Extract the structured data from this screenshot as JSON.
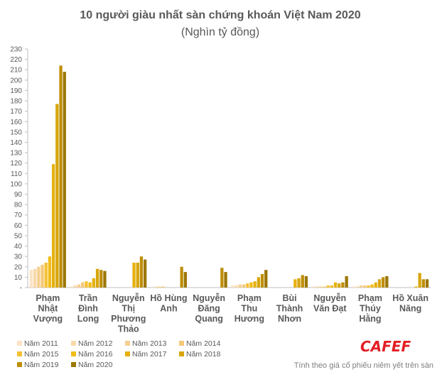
{
  "header": {
    "title": "10 người giàu nhất sàn chứng khoán Việt Nam 2020",
    "subtitle": "(Nghìn tỷ đồng)"
  },
  "brand": {
    "name": "CAFEF",
    "color": "#e31e24"
  },
  "source_note": "Tính theo giá cổ phiếu niêm yết trên sàn",
  "chart_data": {
    "type": "bar",
    "title": "10 người giàu nhất sàn chứng khoán Việt Nam 2020",
    "subtitle": "(Nghìn tỷ đồng)",
    "ylim": [
      0,
      230
    ],
    "yticks": [
      0,
      10,
      20,
      30,
      40,
      50,
      60,
      70,
      80,
      90,
      100,
      110,
      120,
      130,
      140,
      150,
      160,
      170,
      180,
      190,
      200,
      210,
      220,
      230
    ],
    "ytick_labels": [
      "-",
      "10",
      "20",
      "30",
      "40",
      "50",
      "60",
      "70",
      "80",
      "90",
      "100",
      "110",
      "120",
      "130",
      "140",
      "150",
      "160",
      "170",
      "180",
      "190",
      "200",
      "210",
      "220",
      "230"
    ],
    "grid": false,
    "legend_position": "bottom",
    "categories": [
      [
        "Phạm",
        "Nhật",
        "Vượng"
      ],
      [
        "Trần",
        "Đình",
        "Long"
      ],
      [
        "Nguyễn",
        "Thị",
        "Phương",
        "Thảo"
      ],
      [
        "Hồ Hùng",
        "Anh"
      ],
      [
        "Nguyễn",
        "Đăng",
        "Quang"
      ],
      [
        "Phạm",
        "Thu",
        "Hương"
      ],
      [
        "Bùi",
        "Thành",
        "Nhơn"
      ],
      [
        "Nguyễn",
        "Văn Đạt"
      ],
      [
        "Phạm",
        "Thúy",
        "Hằng"
      ],
      [
        "Hồ Xuân",
        "Năng"
      ]
    ],
    "series": [
      {
        "name": "Năm 2011",
        "color": "#fbe3c6",
        "values": [
          17,
          1,
          0,
          0,
          0,
          2,
          0,
          1,
          1,
          0
        ]
      },
      {
        "name": "Năm 2012",
        "color": "#f8d9a8",
        "values": [
          18,
          2,
          0,
          1,
          0,
          2,
          0,
          1,
          1,
          0
        ]
      },
      {
        "name": "Năm 2013",
        "color": "#f5cf90",
        "values": [
          20,
          3,
          0,
          1,
          0,
          3,
          0,
          1,
          2,
          0
        ]
      },
      {
        "name": "Năm 2014",
        "color": "#f3c878",
        "values": [
          22,
          5,
          0,
          1,
          0,
          3,
          0,
          1,
          2,
          0
        ]
      },
      {
        "name": "Năm 2015",
        "color": "#f5c033",
        "values": [
          24,
          6,
          0,
          0,
          0,
          4,
          0,
          2,
          2,
          0
        ]
      },
      {
        "name": "Năm 2016",
        "color": "#f1bc1a",
        "values": [
          30,
          5,
          0,
          0,
          0,
          5,
          0,
          2,
          3,
          0
        ]
      },
      {
        "name": "Năm 2017",
        "color": "#e6b10f",
        "values": [
          119,
          9,
          24,
          0,
          0,
          6,
          8,
          5,
          5,
          1
        ]
      },
      {
        "name": "Năm 2018",
        "color": "#d7a50c",
        "values": [
          177,
          18,
          24,
          0,
          0,
          10,
          9,
          4,
          8,
          14
        ]
      },
      {
        "name": "Năm 2019",
        "color": "#bd8e08",
        "values": [
          214,
          17,
          30,
          20,
          19,
          13,
          12,
          5,
          10,
          8
        ]
      },
      {
        "name": "Năm 2020",
        "color": "#9c7706",
        "values": [
          208,
          16,
          27,
          15,
          15,
          17,
          11,
          11,
          11,
          8
        ]
      }
    ]
  }
}
